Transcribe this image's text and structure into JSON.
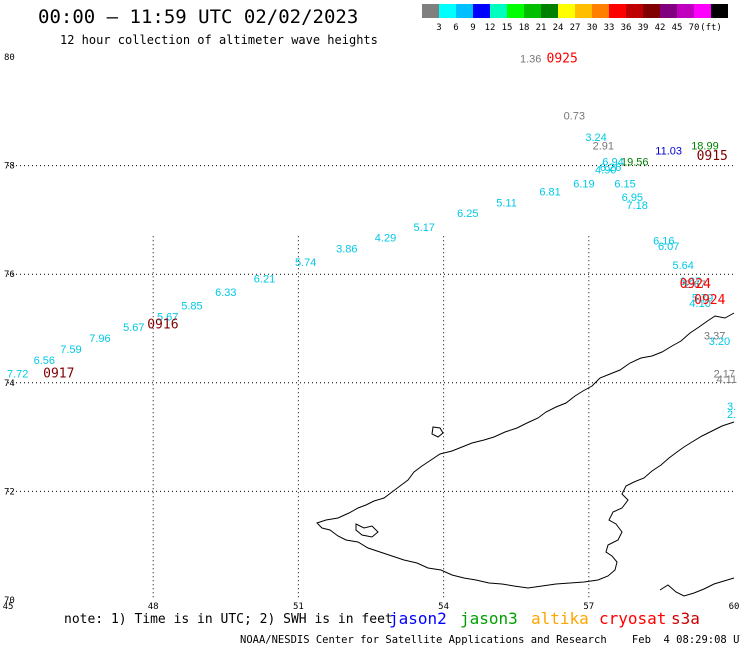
{
  "header": {
    "title": "00:00 – 11:59 UTC 02/02/2023",
    "subtitle": "12 hour collection of altimeter wave heights"
  },
  "colorbar": {
    "colors": [
      "#7f7f7f",
      "#00ffff",
      "#00bfff",
      "#0000ff",
      "#00ffbf",
      "#00ff00",
      "#00bf00",
      "#008000",
      "#ffff00",
      "#ffbf00",
      "#ff7f00",
      "#ff0000",
      "#bf0000",
      "#800000",
      "#800080",
      "#bf00bf",
      "#ff00ff",
      "#000000"
    ],
    "labels": [
      "3",
      "6",
      "9",
      "12",
      "15",
      "18",
      "21",
      "24",
      "27",
      "30",
      "33",
      "36",
      "39",
      "42",
      "45",
      "70",
      "(ft)"
    ]
  },
  "map": {
    "lat_labels": [
      "80",
      "78",
      "76",
      "74",
      "72",
      "70"
    ],
    "lon_labels": [
      "45",
      "48",
      "51",
      "54",
      "57",
      "60"
    ],
    "x_ticks": [
      45,
      48,
      51,
      54,
      57,
      60
    ],
    "y_ticks": [
      70,
      72,
      74,
      76,
      78,
      80
    ],
    "xlim": [
      45,
      60
    ],
    "ylim": [
      70,
      80
    ]
  },
  "readings": [
    {
      "t": "1.36",
      "c": "#777777",
      "lon": 55.8,
      "lat": 79.9
    },
    {
      "t": "0.73",
      "c": "#777777",
      "lon": 56.7,
      "lat": 78.85
    },
    {
      "t": "3.24",
      "c": "#00c8e6",
      "lon": 57.15,
      "lat": 78.45
    },
    {
      "t": "2.91",
      "c": "#777777",
      "lon": 57.3,
      "lat": 78.3
    },
    {
      "t": "18.99",
      "c": "#008000",
      "lon": 59.4,
      "lat": 78.3
    },
    {
      "t": "11.03",
      "c": "#0000cc",
      "lon": 58.65,
      "lat": 78.2
    },
    {
      "t": "19.56",
      "c": "#008000",
      "lon": 57.95,
      "lat": 78.0
    },
    {
      "t": "6.94",
      "c": "#00c8e6",
      "lon": 57.5,
      "lat": 78.0
    },
    {
      "t": "6.26",
      "c": "#00c8e6",
      "lon": 57.45,
      "lat": 77.9
    },
    {
      "t": "4.90",
      "c": "#00c8e6",
      "lon": 57.35,
      "lat": 77.85
    },
    {
      "t": "6.15",
      "c": "#00c8e6",
      "lon": 57.75,
      "lat": 77.6
    },
    {
      "t": "6.95",
      "c": "#00c8e6",
      "lon": 57.9,
      "lat": 77.35
    },
    {
      "t": "7.18",
      "c": "#00c8e6",
      "lon": 58.0,
      "lat": 77.2
    },
    {
      "t": "6.19",
      "c": "#00c8e6",
      "lon": 56.9,
      "lat": 77.6
    },
    {
      "t": "6.81",
      "c": "#00c8e6",
      "lon": 56.2,
      "lat": 77.45
    },
    {
      "t": "5.11",
      "c": "#00c8e6",
      "lon": 55.3,
      "lat": 77.25
    },
    {
      "t": "6.25",
      "c": "#00c8e6",
      "lon": 54.5,
      "lat": 77.05
    },
    {
      "t": "5.17",
      "c": "#00c8e6",
      "lon": 53.6,
      "lat": 76.8
    },
    {
      "t": "4.29",
      "c": "#00c8e6",
      "lon": 52.8,
      "lat": 76.6
    },
    {
      "t": "3.86",
      "c": "#00c8e6",
      "lon": 52.0,
      "lat": 76.4
    },
    {
      "t": "5.74",
      "c": "#00c8e6",
      "lon": 51.15,
      "lat": 76.15
    },
    {
      "t": "6.21",
      "c": "#00c8e6",
      "lon": 50.3,
      "lat": 75.85
    },
    {
      "t": "6.33",
      "c": "#00c8e6",
      "lon": 49.5,
      "lat": 75.6
    },
    {
      "t": "5.85",
      "c": "#00c8e6",
      "lon": 48.8,
      "lat": 75.35
    },
    {
      "t": "5.67",
      "c": "#00c8e6",
      "lon": 48.3,
      "lat": 75.15
    },
    {
      "t": "5.67",
      "c": "#00c8e6",
      "lon": 47.6,
      "lat": 74.95
    },
    {
      "t": "7.96",
      "c": "#00c8e6",
      "lon": 46.9,
      "lat": 74.75
    },
    {
      "t": "7.59",
      "c": "#00c8e6",
      "lon": 46.3,
      "lat": 74.55
    },
    {
      "t": "6.56",
      "c": "#00c8e6",
      "lon": 45.75,
      "lat": 74.35
    },
    {
      "t": "7.72",
      "c": "#00c8e6",
      "lon": 45.2,
      "lat": 74.1
    },
    {
      "t": "6.16",
      "c": "#00c8e6",
      "lon": 58.55,
      "lat": 76.55
    },
    {
      "t": "6.07",
      "c": "#00c8e6",
      "lon": 58.65,
      "lat": 76.45
    },
    {
      "t": "5.64",
      "c": "#00c8e6",
      "lon": 58.95,
      "lat": 76.1
    },
    {
      "t": "3.87",
      "c": "#00c8e6",
      "lon": 59.1,
      "lat": 75.8
    },
    {
      "t": "2.67",
      "c": "#777777",
      "lon": 59.2,
      "lat": 75.75
    },
    {
      "t": "5.79",
      "c": "#00c8e6",
      "lon": 59.35,
      "lat": 75.5
    },
    {
      "t": "4.10",
      "c": "#00c8e6",
      "lon": 59.3,
      "lat": 75.4
    },
    {
      "t": "3.37",
      "c": "#777777",
      "lon": 59.6,
      "lat": 74.8
    },
    {
      "t": "3.20",
      "c": "#00c8e6",
      "lon": 59.7,
      "lat": 74.7
    },
    {
      "t": "2.17",
      "c": "#777777",
      "lon": 59.8,
      "lat": 74.1
    },
    {
      "t": "4.11",
      "c": "#777777",
      "lon": 59.85,
      "lat": 74.0
    },
    {
      "t": "3.",
      "c": "#00c8e6",
      "lon": 59.95,
      "lat": 73.5
    },
    {
      "t": "2.",
      "c": "#00c8e6",
      "lon": 59.95,
      "lat": 73.35
    }
  ],
  "time_labels": [
    {
      "t": "0925",
      "c": "#ff0000",
      "lon": 56.45,
      "lat": 79.9
    },
    {
      "t": "0915",
      "c": "#800000",
      "lon": 59.55,
      "lat": 78.1
    },
    {
      "t": "0924",
      "c": "#ff0000",
      "lon": 59.2,
      "lat": 75.75
    },
    {
      "t": "0924",
      "c": "#ff0000",
      "lon": 59.5,
      "lat": 75.45
    },
    {
      "t": "0916",
      "c": "#800000",
      "lon": 48.2,
      "lat": 75.0
    },
    {
      "t": "0917",
      "c": "#800000",
      "lon": 46.05,
      "lat": 74.1
    }
  ],
  "footer": {
    "note": "note: 1) Time is in UTC; 2) SWH is in feet",
    "legend": [
      {
        "name": "jason2",
        "color": "#0000ff"
      },
      {
        "name": "jason3",
        "color": "#00a000"
      },
      {
        "name": "altika",
        "color": "#ffa500"
      },
      {
        "name": "cryosat",
        "color": "#ff0000"
      },
      {
        "name": "s3a",
        "color": "#cc0000"
      }
    ],
    "credit": "NOAA/NESDIS Center for Satellite Applications and Research    Feb  4 08:29:08 UTC 2023"
  }
}
